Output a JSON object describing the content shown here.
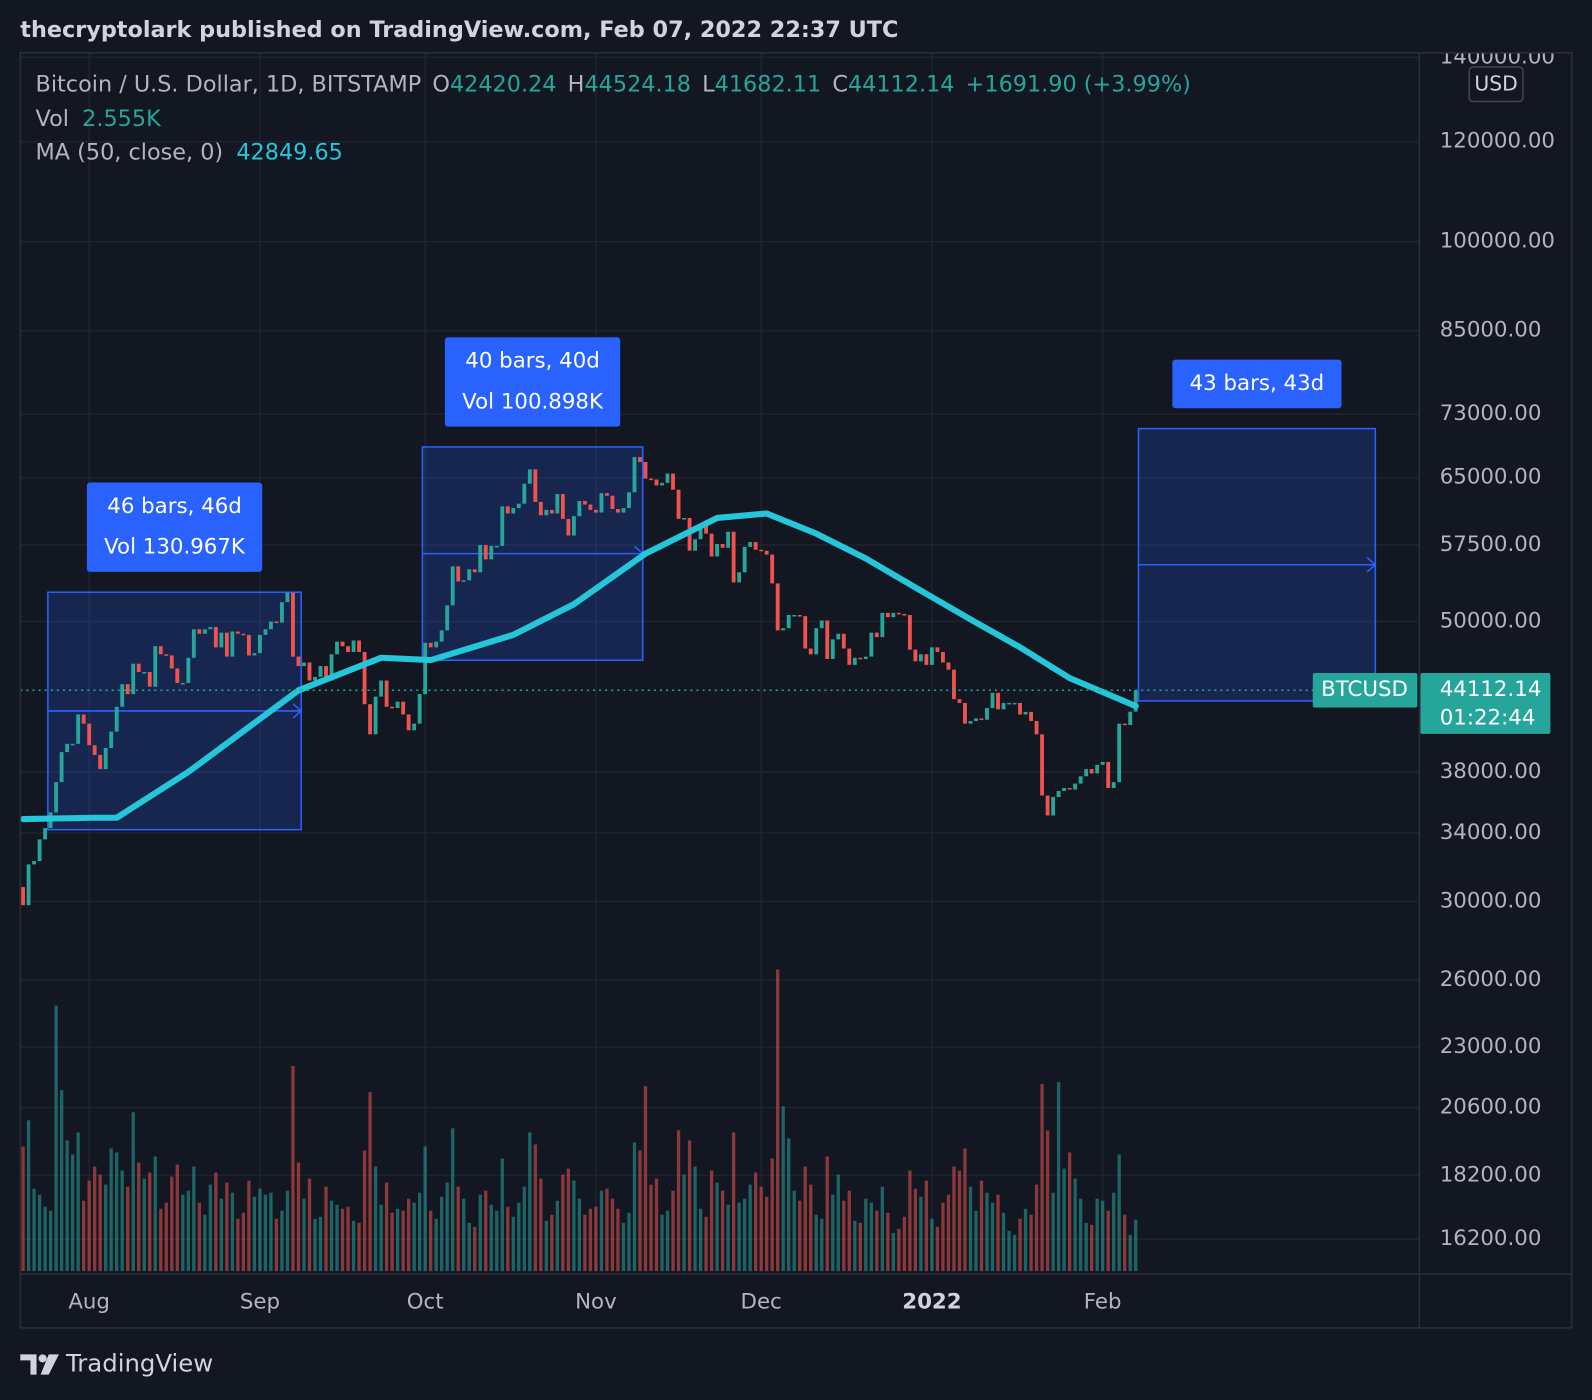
{
  "header": {
    "title": "thecryptolark published on TradingView.com, Feb 07, 2022 22:37 UTC",
    "brand": "TradingView"
  },
  "chart_data": {
    "type": "candlestick",
    "legend": {
      "symbol": "Bitcoin / U.S. Dollar, 1D, BITSTAMP",
      "o": "O",
      "h": "H",
      "l": "L",
      "c": "C",
      "high": 44524.18,
      "low": 41682.11,
      "change": "+1691.90 (+3.99%)",
      "vol_label": "Vol",
      "vol": "2.555K"
    },
    "currency": "USD",
    "symbol_tag": "BTCUSD",
    "countdown": "01:22:44",
    "up_color": "#26a69a",
    "down_color": "#ef5350",
    "open": [
      30800,
      29800,
      32100,
      32300,
      33600,
      34300,
      35300,
      37300,
      39400,
      40000,
      40000,
      42200,
      41500,
      39900,
      39200,
      38200,
      39700,
      40900,
      42800,
      44600,
      43800,
      46300,
      45600,
      45600,
      44400,
      47800,
      47100,
      47000,
      45900,
      44700,
      44700,
      46800,
      49300,
      48900,
      49300,
      49500,
      47700,
      49000,
      46900,
      49100,
      48900,
      48800,
      47000,
      47200,
      48800,
      49300,
      50000,
      49900,
      51800,
      52700,
      46900,
      46100,
      46400,
      44900,
      45200,
      46100,
      44900,
      47100,
      48200,
      47800,
      47300,
      48300,
      47300,
      43000,
      40700,
      43600,
      44900,
      42800,
      42700,
      43200,
      42200,
      41000,
      41500,
      43800,
      48100,
      47700,
      48200,
      49200,
      51500,
      55300,
      53800,
      53900,
      55000,
      54700,
      57500,
      56000,
      57400,
      57400,
      61700,
      60900,
      61500,
      62000,
      64300,
      66000,
      62200,
      60700,
      61300,
      60900,
      63100,
      60300,
      58500,
      60600,
      62300,
      61900,
      61300,
      61000,
      63200,
      62900,
      61400,
      61000,
      61500,
      63300,
      67500,
      66900,
      64900,
      64800,
      64100,
      64400,
      65500,
      63600,
      60300,
      60400,
      56900,
      58100,
      59700,
      58700,
      56300,
      57600,
      57200,
      58900,
      53700,
      54700,
      57300,
      57800,
      57000,
      56900,
      56500,
      53600,
      49200,
      49400,
      50600,
      50600,
      50500,
      47600,
      47100,
      49400,
      50100,
      46700,
      48400,
      48900,
      47600,
      46200,
      46800,
      46700,
      46900,
      49000,
      48600,
      50800,
      50400,
      50800,
      50700,
      50600,
      47500,
      46500,
      47100,
      46200,
      47700,
      47300,
      46400,
      45800,
      43400,
      43100,
      41500,
      41700,
      41900,
      41800,
      42700,
      43900,
      42600,
      43100,
      43100,
      43100,
      42200,
      42400,
      41700,
      40700,
      36400,
      35100,
      36300,
      36700,
      36900,
      36800,
      37200,
      37700,
      38200,
      37900,
      38500,
      38700,
      36900,
      37300,
      41500,
      41400,
      42420.24
    ],
    "close": [
      29800,
      32100,
      32300,
      33600,
      34300,
      35300,
      37300,
      39400,
      40000,
      40000,
      42200,
      41500,
      39900,
      39200,
      38200,
      39700,
      40900,
      42800,
      44600,
      43800,
      46300,
      45600,
      45600,
      44400,
      47800,
      47100,
      47000,
      45900,
      44700,
      44700,
      46800,
      49300,
      48900,
      49300,
      49500,
      47700,
      49000,
      46900,
      49100,
      48900,
      48800,
      47000,
      47200,
      48800,
      49300,
      50000,
      49900,
      51800,
      52700,
      46900,
      46100,
      46400,
      44900,
      45200,
      46100,
      44900,
      47100,
      48200,
      47800,
      47300,
      48300,
      47300,
      43000,
      40700,
      43600,
      44900,
      42800,
      42700,
      43200,
      42200,
      41000,
      41500,
      43800,
      48100,
      47700,
      48200,
      49200,
      51500,
      55300,
      53800,
      53900,
      55000,
      54700,
      57500,
      56000,
      57400,
      57400,
      61700,
      60900,
      61500,
      62000,
      64300,
      66000,
      62200,
      60700,
      61300,
      60900,
      63100,
      60300,
      58500,
      60600,
      62300,
      61900,
      61300,
      61000,
      63200,
      62900,
      61400,
      61000,
      61500,
      63300,
      67500,
      66900,
      64900,
      64800,
      64100,
      64400,
      65500,
      63600,
      60300,
      60400,
      56900,
      58100,
      59700,
      58700,
      56300,
      57600,
      57200,
      58900,
      53700,
      54700,
      57300,
      57800,
      57000,
      56900,
      56500,
      53600,
      49200,
      49400,
      50600,
      50600,
      50500,
      47600,
      47100,
      49400,
      50100,
      46700,
      48400,
      48900,
      47600,
      46200,
      46800,
      46700,
      46900,
      49000,
      48600,
      50800,
      50400,
      50800,
      50700,
      50600,
      47500,
      46500,
      47100,
      46200,
      47700,
      47300,
      46400,
      45800,
      43400,
      43100,
      41500,
      41700,
      41900,
      41800,
      42700,
      43900,
      42600,
      43100,
      43100,
      43100,
      42200,
      42400,
      41700,
      40700,
      36400,
      35100,
      36300,
      36700,
      36900,
      36800,
      37200,
      37700,
      38200,
      37900,
      38500,
      38700,
      36900,
      37300,
      41500,
      41400,
      42420.24,
      44112.14
    ],
    "volume": [
      6.2,
      7.5,
      4.1,
      3.8,
      3.2,
      3.0,
      13.2,
      9.0,
      6.5,
      5.8,
      6.9,
      3.5,
      4.5,
      5.2,
      4.8,
      4.3,
      6.1,
      5.9,
      5.0,
      4.2,
      7.9,
      5.4,
      4.6,
      4.9,
      5.7,
      3.1,
      3.4,
      4.7,
      5.3,
      3.8,
      4.0,
      5.2,
      3.4,
      2.8,
      4.3,
      4.9,
      3.6,
      4.4,
      3.9,
      2.6,
      2.9,
      4.5,
      3.7,
      4.1,
      3.8,
      3.9,
      2.6,
      3.0,
      4.0,
      10.2,
      5.4,
      3.6,
      4.6,
      2.6,
      2.7,
      4.2,
      3.5,
      3.3,
      3.1,
      3.2,
      2.5,
      2.4,
      6.0,
      8.9,
      5.2,
      3.3,
      4.4,
      2.9,
      3.1,
      3.0,
      3.6,
      3.4,
      3.9,
      6.2,
      3.0,
      2.6,
      3.7,
      4.4,
      7.1,
      4.2,
      3.6,
      2.4,
      2.2,
      3.8,
      4.0,
      3.3,
      3.0,
      5.6,
      3.2,
      2.7,
      3.4,
      4.2,
      6.9,
      6.3,
      4.6,
      2.5,
      2.8,
      3.5,
      4.8,
      5.1,
      4.5,
      3.6,
      2.8,
      3.1,
      3.2,
      4.0,
      4.1,
      3.6,
      3.1,
      2.4,
      2.9,
      6.4,
      6.0,
      9.2,
      4.3,
      4.6,
      2.8,
      3.0,
      4.0,
      7.0,
      4.8,
      6.5,
      5.2,
      3.1,
      2.7,
      5.0,
      4.4,
      4.0,
      3.3,
      6.9,
      3.4,
      3.6,
      4.3,
      4.9,
      4.2,
      3.7,
      5.6,
      15.0,
      8.2,
      6.6,
      4.0,
      3.5,
      5.2,
      4.3,
      2.8,
      2.6,
      5.7,
      3.8,
      4.8,
      3.5,
      4.0,
      2.5,
      2.4,
      3.6,
      3.4,
      3.0,
      4.2,
      2.9,
      1.9,
      2.1,
      2.7,
      5.0,
      4.1,
      3.7,
      4.5,
      2.6,
      2.2,
      3.4,
      3.8,
      5.2,
      5.0,
      6.1,
      4.2,
      3.0,
      4.5,
      3.9,
      3.4,
      3.8,
      2.9,
      2.0,
      1.8,
      2.6,
      3.1,
      2.8,
      4.3,
      9.3,
      7.0,
      3.9,
      9.4,
      5.1,
      5.9,
      4.6,
      3.6,
      2.4,
      2.3,
      3.6,
      3.5,
      3.0,
      3.9,
      5.8,
      2.8,
      1.8,
      2.555
    ],
    "ma": {
      "name": "MA (50, close, 0)",
      "color": "#26c6da",
      "x": [
        0,
        13,
        17,
        30,
        50,
        65,
        74,
        89,
        100,
        113,
        126,
        135,
        144,
        153,
        162,
        172,
        181,
        190,
        202
      ],
      "values": [
        34870,
        34950,
        34950,
        38000,
        44100,
        46800,
        46600,
        48800,
        51600,
        56600,
        60400,
        60900,
        58700,
        56100,
        53200,
        50200,
        47700,
        45100,
        42849.65
      ]
    },
    "xlim": [
      0,
      254
    ],
    "xticks": [
      {
        "value": 12,
        "label": "Aug"
      },
      {
        "value": 43,
        "label": "Sep"
      },
      {
        "value": 73,
        "label": "Oct"
      },
      {
        "value": 104,
        "label": "Nov"
      },
      {
        "value": 134,
        "label": "Dec"
      },
      {
        "value": 165,
        "label": "2022",
        "bold": true
      },
      {
        "value": 196,
        "label": "Feb"
      }
    ],
    "ylim": [
      15200,
      141150
    ],
    "log_scale": true,
    "grid": true,
    "yticks": [
      {
        "value": 140000,
        "label": "140000.00"
      },
      {
        "value": 120000,
        "label": "120000.00"
      },
      {
        "value": 100000,
        "label": "100000.00"
      },
      {
        "value": 85000,
        "label": "85000.00"
      },
      {
        "value": 73000,
        "label": "73000.00"
      },
      {
        "value": 65000,
        "label": "65000.00"
      },
      {
        "value": 57500,
        "label": "57500.00"
      },
      {
        "value": 50000,
        "label": "50000.00"
      },
      {
        "value": 38000,
        "label": "38000.00"
      },
      {
        "value": 34000,
        "label": "34000.00"
      },
      {
        "value": 30000,
        "label": "30000.00"
      },
      {
        "value": 26000,
        "label": "26000.00"
      },
      {
        "value": 23000,
        "label": "23000.00"
      },
      {
        "value": 20600,
        "label": "20600.00"
      },
      {
        "value": 18200,
        "label": "18200.00"
      },
      {
        "value": 16200,
        "label": "16200.00"
      }
    ],
    "measures": [
      {
        "start": 5,
        "end": 51,
        "high": 52750,
        "low": 34200,
        "label": "46 bars, 46d",
        "vol": "Vol 130.967K"
      },
      {
        "start": 73,
        "end": 113,
        "high": 68760,
        "low": 46590,
        "label": "40 bars, 40d",
        "vol": "Vol 100.898K"
      },
      {
        "start": 203,
        "end": 246,
        "high": 71100,
        "low": 43260,
        "label": "43 bars, 43d"
      }
    ]
  }
}
